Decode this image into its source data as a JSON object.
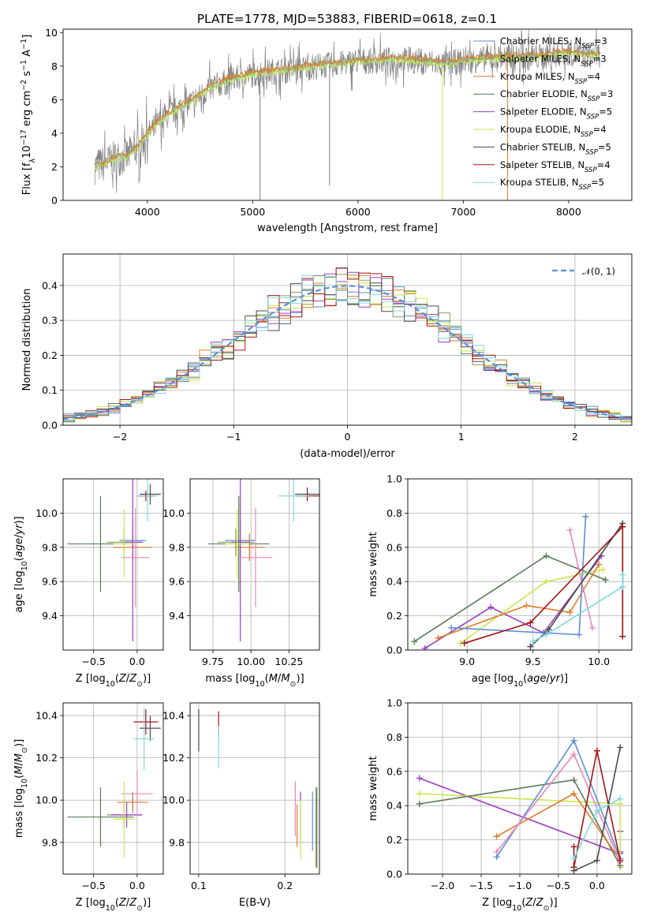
{
  "figure_title": "PLATE=1778, MJD=53883, FIBERID=0618, z=0.1",
  "colors": {
    "Chabrier MILES": "#5b8fd8",
    "Salpeter MILES": "#8fa05a",
    "Kroupa MILES": "#e07b2a",
    "Chabrier ELODIE": "#5a7a5a",
    "Salpeter ELODIE": "#9a3fc0",
    "Kroupa ELODIE": "#c8e84c",
    "Chabrier STELIB": "#4a4a4a",
    "Salpeter STELIB": "#a31515",
    "Kroupa STELIB": "#7ed8e0",
    "extra_pink": "#e889b8",
    "data": "#808080"
  },
  "chart_data": [
    {
      "id": "spectrum",
      "type": "line",
      "title": "PLATE=1778, MJD=53883, FIBERID=0618, z=0.1",
      "xlabel": "wavelength [Angstrom, rest frame]",
      "ylabel": "Flux [f_λ10^-17 erg cm^-2 s^-1 A^-1]",
      "xlim": [
        3200,
        8600
      ],
      "ylim": [
        0,
        10.2
      ],
      "xticks": [
        4000,
        5000,
        6000,
        7000,
        8000
      ],
      "yticks": [
        0,
        2,
        4,
        6,
        8,
        10
      ],
      "grid": false,
      "legend_position": "top-right",
      "legend": [
        {
          "label": "Chabrier MILES, N",
          "sub": "SSP",
          "suffix": "=3",
          "series": "Chabrier MILES"
        },
        {
          "label": "Salpeter MILES, N",
          "sub": "SSP",
          "suffix": "=3",
          "series": "Salpeter MILES"
        },
        {
          "label": "Kroupa MILES, N",
          "sub": "SSP",
          "suffix": "=4",
          "series": "Kroupa MILES"
        },
        {
          "label": "Chabrier ELODIE, N",
          "sub": "SSP",
          "suffix": "=3",
          "series": "Chabrier ELODIE"
        },
        {
          "label": "Salpeter ELODIE, N",
          "sub": "SSP",
          "suffix": "=5",
          "series": "Salpeter ELODIE"
        },
        {
          "label": "Kroupa ELODIE, N",
          "sub": "SSP",
          "suffix": "=4",
          "series": "Kroupa ELODIE"
        },
        {
          "label": "Chabrier STELIB, N",
          "sub": "SSP",
          "suffix": "=5",
          "series": "Chabrier STELIB"
        },
        {
          "label": "Salpeter STELIB, N",
          "sub": "SSP",
          "suffix": "=4",
          "series": "Salpeter STELIB"
        },
        {
          "label": "Kroupa STELIB, N",
          "sub": "SSP",
          "suffix": "=5",
          "series": "Kroupa STELIB"
        }
      ],
      "continuum": {
        "x": [
          3500,
          3600,
          3700,
          3800,
          3900,
          4000,
          4100,
          4200,
          4300,
          4400,
          4500,
          4600,
          4800,
          5000,
          5200,
          5400,
          5600,
          5800,
          6000,
          6200,
          6400,
          6600,
          6800,
          7000,
          7200,
          7400,
          7600,
          7800,
          8000,
          8200,
          8300
        ],
        "y": [
          2.0,
          2.2,
          2.5,
          2.6,
          3.1,
          3.9,
          4.6,
          5.1,
          5.5,
          5.8,
          6.2,
          6.7,
          7.2,
          7.5,
          7.7,
          7.8,
          8.0,
          8.1,
          8.3,
          8.3,
          8.4,
          8.3,
          8.1,
          8.3,
          8.4,
          8.5,
          8.5,
          8.6,
          8.8,
          8.6,
          8.7
        ]
      },
      "models": [
        {
          "name": "Kroupa STELIB",
          "offset": 0.05
        },
        {
          "name": "Salpeter MILES",
          "offset": 0.1
        },
        {
          "name": "Kroupa ELODIE",
          "offset": -0.05
        },
        {
          "name": "Kroupa MILES",
          "offset": 0.15
        }
      ],
      "spikes": [
        {
          "x": 5070,
          "y0": 0,
          "series": "data"
        },
        {
          "x": 5730,
          "y0": 0.9,
          "series": "data"
        },
        {
          "x": 6800,
          "y0": 0,
          "series": "Kroupa ELODIE"
        },
        {
          "x": 7420,
          "y0": 0,
          "series": "Kroupa MILES"
        }
      ]
    },
    {
      "id": "residuals",
      "type": "line",
      "xlabel": "(data-model)/error",
      "ylabel": "Normed distribution",
      "xlim": [
        -2.5,
        2.5
      ],
      "ylim": [
        0,
        0.49
      ],
      "xticks": [
        -2,
        -1,
        0,
        1,
        2
      ],
      "yticks": [
        0.0,
        0.1,
        0.2,
        0.3,
        0.4
      ],
      "grid": true,
      "legend_position": "top-right",
      "legend": [
        {
          "label": "𝒩(0, 1)",
          "series": "gauss"
        }
      ],
      "gauss": {
        "mu": 0,
        "sigma": 1,
        "style": "dashed"
      },
      "histograms": {
        "bin_width": 0.1,
        "series": [
          "Chabrier MILES",
          "Salpeter MILES",
          "Kroupa MILES",
          "Chabrier ELODIE",
          "Salpeter ELODIE",
          "Kroupa ELODIE",
          "Chabrier STELIB",
          "Salpeter STELIB",
          "Kroupa STELIB"
        ]
      }
    },
    {
      "id": "age_vs_z",
      "type": "scatter",
      "xlabel": "Z [log10(Z/Z⊙)]",
      "ylabel": "age  [log10(age/yr)]",
      "xlim": [
        -0.85,
        0.3
      ],
      "ylim": [
        9.2,
        10.2
      ],
      "xticks": [
        -0.5,
        0.0
      ],
      "yticks": [
        9.4,
        9.6,
        9.8,
        10.0
      ],
      "grid": true,
      "points": [
        {
          "series": "Chabrier MILES",
          "x": -0.05,
          "y": 9.84,
          "xerr": 0.15,
          "yerr": 0.11
        },
        {
          "series": "Salpeter MILES",
          "x": -0.15,
          "y": 9.83,
          "xerr": 0.2,
          "yerr": 0.08
        },
        {
          "series": "Kroupa MILES",
          "x": -0.05,
          "y": 9.8,
          "xerr": 0.22,
          "yerr": 0.08
        },
        {
          "series": "Chabrier ELODIE",
          "x": -0.42,
          "y": 9.82,
          "xerr": 0.38,
          "yerr": 0.28
        },
        {
          "series": "Salpeter ELODIE",
          "x": -0.05,
          "y": 9.83,
          "xerr": 0.12,
          "yerr": 0.58
        },
        {
          "series": "Kroupa ELODIE",
          "x": -0.15,
          "y": 9.82,
          "xerr": 0.12,
          "yerr": 0.2
        },
        {
          "series": "Chabrier STELIB",
          "x": 0.15,
          "y": 10.11,
          "xerr": 0.12,
          "yerr": 0.06
        },
        {
          "series": "Salpeter STELIB",
          "x": 0.1,
          "y": 10.1,
          "xerr": 0.1,
          "yerr": 0.03
        },
        {
          "series": "Kroupa STELIB",
          "x": 0.12,
          "y": 10.1,
          "xerr": 0.12,
          "yerr": 0.15
        },
        {
          "series": "extra_pink",
          "x": -0.02,
          "y": 9.74,
          "xerr": 0.16,
          "yerr": 0.29
        }
      ]
    },
    {
      "id": "age_vs_mass",
      "type": "scatter",
      "xlabel": "mass [log10(M/M⊙)]",
      "ylabel": "",
      "xlim": [
        9.6,
        10.45
      ],
      "ylim": [
        9.2,
        10.2
      ],
      "xticks": [
        9.75,
        10.0,
        10.25
      ],
      "tick_labels": [
        "9.75",
        "10.00",
        "10.25"
      ],
      "yticks": [
        9.4,
        9.6,
        9.8,
        10.0
      ],
      "grid": true,
      "points": [
        {
          "series": "Chabrier MILES",
          "x": 9.93,
          "y": 9.84,
          "xerr": 0.1,
          "yerr": 0.11
        },
        {
          "series": "Salpeter MILES",
          "x": 9.9,
          "y": 9.83,
          "xerr": 0.12,
          "yerr": 0.08
        },
        {
          "series": "Kroupa MILES",
          "x": 9.99,
          "y": 9.8,
          "xerr": 0.1,
          "yerr": 0.08
        },
        {
          "series": "Chabrier ELODIE",
          "x": 9.92,
          "y": 9.82,
          "xerr": 0.2,
          "yerr": 0.28
        },
        {
          "series": "Salpeter ELODIE",
          "x": 9.93,
          "y": 9.83,
          "xerr": 0.06,
          "yerr": 0.58
        },
        {
          "series": "Kroupa ELODIE",
          "x": 9.91,
          "y": 9.82,
          "xerr": 0.08,
          "yerr": 0.2
        },
        {
          "series": "Chabrier STELIB",
          "x": 10.37,
          "y": 10.11,
          "xerr": 0.08,
          "yerr": 0.04
        },
        {
          "series": "Salpeter STELIB",
          "x": 10.37,
          "y": 10.1,
          "xerr": 0.08,
          "yerr": 0.03
        },
        {
          "series": "Kroupa STELIB",
          "x": 10.28,
          "y": 10.1,
          "xerr": 0.1,
          "yerr": 0.15
        },
        {
          "series": "extra_pink",
          "x": 10.03,
          "y": 9.74,
          "xerr": 0.11,
          "yerr": 0.29
        }
      ]
    },
    {
      "id": "weight_vs_age",
      "type": "line",
      "xlabel": "age  [log10(age/yr)]",
      "ylabel": "mass weight",
      "xlim": [
        8.55,
        10.25
      ],
      "ylim": [
        0,
        1.0
      ],
      "xticks": [
        9.0,
        9.5,
        10.0
      ],
      "yticks": [
        0.0,
        0.2,
        0.4,
        0.6,
        0.8,
        1.0
      ],
      "grid": true,
      "series": [
        {
          "name": "Chabrier ELODIE",
          "x": [
            8.6,
            9.6,
            10.05
          ],
          "y": [
            0.05,
            0.55,
            0.41
          ]
        },
        {
          "name": "Salpeter ELODIE",
          "x": [
            8.68,
            9.18,
            9.58,
            10.02
          ],
          "y": [
            0.01,
            0.25,
            0.1,
            0.55
          ]
        },
        {
          "name": "Kroupa ELODIE",
          "x": [
            8.95,
            9.6,
            10.03
          ],
          "y": [
            0.04,
            0.4,
            0.47
          ]
        },
        {
          "name": "Kroupa MILES",
          "x": [
            8.78,
            9.45,
            9.78,
            10.0
          ],
          "y": [
            0.07,
            0.26,
            0.22,
            0.5
          ]
        },
        {
          "name": "Chabrier MILES",
          "x": [
            8.88,
            9.85,
            9.9
          ],
          "y": [
            0.13,
            0.09,
            0.78
          ]
        },
        {
          "name": "extra_pink",
          "x": [
            9.78,
            9.95
          ],
          "y": [
            0.7,
            0.13
          ]
        },
        {
          "name": "Chabrier STELIB",
          "x": [
            9.48,
            9.62,
            10.18,
            10.18
          ],
          "y": [
            0.02,
            0.12,
            0.74,
            0.08
          ]
        },
        {
          "name": "Salpeter STELIB",
          "x": [
            8.98,
            9.48,
            10.18,
            10.18
          ],
          "y": [
            0.04,
            0.16,
            0.72,
            0.08
          ]
        },
        {
          "name": "Kroupa STELIB",
          "x": [
            9.5,
            9.6,
            10.18,
            10.18
          ],
          "y": [
            0.05,
            0.09,
            0.37,
            0.44
          ]
        }
      ]
    },
    {
      "id": "mass_vs_z",
      "type": "scatter",
      "xlabel": "Z [log10(Z/Z⊙)]",
      "ylabel": "mass [log10(M/M⊙)]",
      "xlim": [
        -0.85,
        0.3
      ],
      "ylim": [
        9.65,
        10.46
      ],
      "xticks": [
        -0.5,
        0.0
      ],
      "yticks": [
        9.8,
        10.0,
        10.2,
        10.4
      ],
      "grid": true,
      "points": [
        {
          "series": "Chabrier MILES",
          "x": -0.05,
          "y": 9.99,
          "xerr": 0.12,
          "yerr": 0.05
        },
        {
          "series": "Salpeter MILES",
          "x": -0.15,
          "y": 9.93,
          "xerr": 0.2,
          "yerr": 0.06
        },
        {
          "series": "Kroupa MILES",
          "x": -0.05,
          "y": 9.99,
          "xerr": 0.18,
          "yerr": 0.04
        },
        {
          "series": "Chabrier ELODIE",
          "x": -0.42,
          "y": 9.92,
          "xerr": 0.38,
          "yerr": 0.14
        },
        {
          "series": "Salpeter ELODIE",
          "x": -0.12,
          "y": 9.93,
          "xerr": 0.18,
          "yerr": 0.06
        },
        {
          "series": "Kroupa ELODIE",
          "x": -0.15,
          "y": 9.91,
          "xerr": 0.12,
          "yerr": 0.18
        },
        {
          "series": "Chabrier STELIB",
          "x": 0.15,
          "y": 10.34,
          "xerr": 0.12,
          "yerr": 0.06
        },
        {
          "series": "Salpeter STELIB",
          "x": 0.1,
          "y": 10.37,
          "xerr": 0.14,
          "yerr": 0.06
        },
        {
          "series": "Kroupa STELIB",
          "x": 0.08,
          "y": 10.29,
          "xerr": 0.12,
          "yerr": 0.15
        },
        {
          "series": "extra_pink",
          "x": 0.0,
          "y": 10.03,
          "xerr": 0.18,
          "yerr": 0.11
        }
      ]
    },
    {
      "id": "mass_vs_ebv",
      "type": "scatter",
      "xlabel": "E(B-V)",
      "ylabel": "",
      "xlim": [
        0.09,
        0.24
      ],
      "ylim": [
        9.65,
        10.46
      ],
      "xticks": [
        0.1,
        0.2
      ],
      "yticks": [
        9.8,
        10.0,
        10.2,
        10.4
      ],
      "grid": true,
      "points": [
        {
          "series": "Chabrier MILES",
          "x": 0.232,
          "y": 9.9,
          "xerr": 0,
          "yerr": 0.14
        },
        {
          "series": "Salpeter MILES",
          "x": 0.236,
          "y": 9.87,
          "xerr": 0,
          "yerr": 0.19
        },
        {
          "series": "Kroupa MILES",
          "x": 0.214,
          "y": 9.88,
          "xerr": 0,
          "yerr": 0.1
        },
        {
          "series": "Chabrier ELODIE",
          "x": 0.237,
          "y": 9.87,
          "xerr": 0,
          "yerr": 0.19
        },
        {
          "series": "Salpeter ELODIE",
          "x": 0.218,
          "y": 9.92,
          "xerr": 0,
          "yerr": 0.12
        },
        {
          "series": "Kroupa ELODIE",
          "x": 0.218,
          "y": 9.86,
          "xerr": 0,
          "yerr": 0.14
        },
        {
          "series": "Chabrier STELIB",
          "x": 0.1,
          "y": 10.33,
          "xerr": 0,
          "yerr": 0.1
        },
        {
          "series": "Salpeter STELIB",
          "x": 0.123,
          "y": 10.36,
          "xerr": 0,
          "yerr": 0.06
        },
        {
          "series": "Kroupa STELIB",
          "x": 0.123,
          "y": 10.25,
          "xerr": 0,
          "yerr": 0.1
        },
        {
          "series": "extra_pink",
          "x": 0.212,
          "y": 9.96,
          "xerr": 0,
          "yerr": 0.13
        }
      ]
    },
    {
      "id": "weight_vs_z",
      "type": "line",
      "xlabel": "Z [log10(Z/Z⊙)]",
      "ylabel": "mass weight",
      "xlim": [
        -2.45,
        0.45
      ],
      "ylim": [
        0,
        1.0
      ],
      "xticks": [
        -2.0,
        -1.5,
        -1.0,
        -0.5,
        0.0
      ],
      "yticks": [
        0.0,
        0.2,
        0.4,
        0.6,
        0.8,
        1.0
      ],
      "grid": true,
      "series": [
        {
          "name": "Salpeter ELODIE",
          "x": [
            -2.3,
            0.3,
            0.3,
            0.3
          ],
          "y": [
            0.56,
            0.12,
            0.25,
            0.13
          ]
        },
        {
          "name": "Kroupa ELODIE",
          "x": [
            -2.3,
            0.3,
            0.3
          ],
          "y": [
            0.47,
            0.41,
            0.04
          ]
        },
        {
          "name": "Chabrier ELODIE",
          "x": [
            -2.3,
            -0.3,
            0.3
          ],
          "y": [
            0.41,
            0.55,
            0.05
          ]
        },
        {
          "name": "Kroupa MILES",
          "x": [
            -1.3,
            -0.3,
            0.3,
            0.3
          ],
          "y": [
            0.22,
            0.47,
            0.08,
            0.09
          ]
        },
        {
          "name": "Chabrier MILES",
          "x": [
            -1.3,
            -0.3,
            0.3
          ],
          "y": [
            0.1,
            0.78,
            0.09
          ]
        },
        {
          "name": "extra_pink",
          "x": [
            -1.3,
            -0.3,
            0.3
          ],
          "y": [
            0.13,
            0.7,
            0.07
          ]
        },
        {
          "name": "Salpeter STELIB",
          "x": [
            -0.3,
            -0.3,
            0.0,
            0.3
          ],
          "y": [
            0.16,
            0.04,
            0.72,
            0.08
          ]
        },
        {
          "name": "Chabrier STELIB",
          "x": [
            -0.3,
            0.0,
            0.3
          ],
          "y": [
            0.02,
            0.08,
            0.74
          ]
        },
        {
          "name": "Kroupa STELIB",
          "x": [
            -0.3,
            0.0,
            0.3
          ],
          "y": [
            0.09,
            0.37,
            0.44
          ]
        }
      ]
    }
  ]
}
